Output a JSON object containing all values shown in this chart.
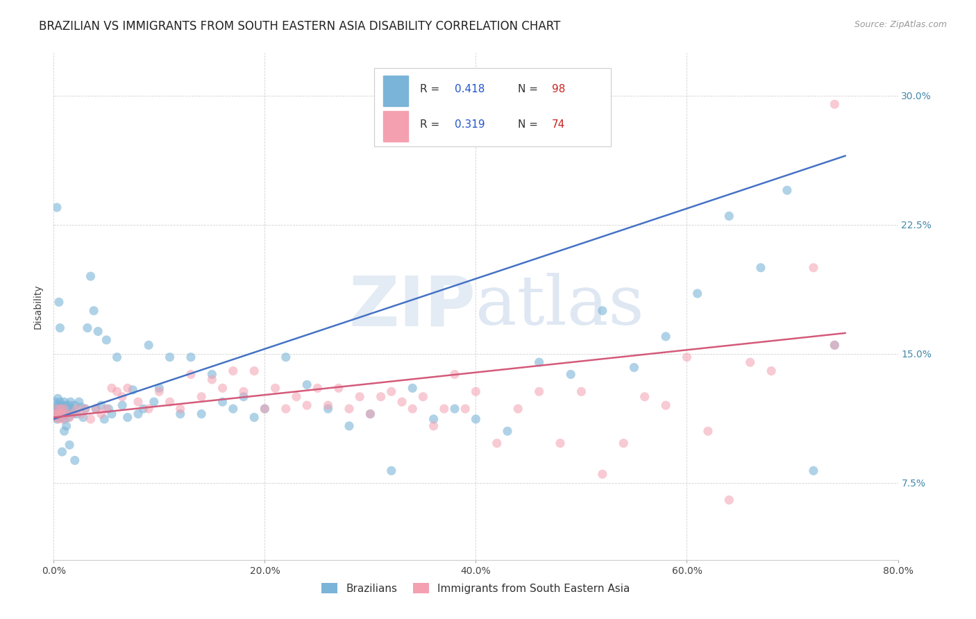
{
  "title": "BRAZILIAN VS IMMIGRANTS FROM SOUTH EASTERN ASIA DISABILITY CORRELATION CHART",
  "source": "Source: ZipAtlas.com",
  "xlabel_ticks": [
    "0.0%",
    "20.0%",
    "40.0%",
    "60.0%",
    "80.0%"
  ],
  "ylabel_ticks": [
    "7.5%",
    "15.0%",
    "22.5%",
    "30.0%"
  ],
  "ylabel_label": "Disability",
  "xlim": [
    0.0,
    0.8
  ],
  "ylim": [
    0.03,
    0.325
  ],
  "xtick_vals": [
    0.0,
    0.2,
    0.4,
    0.6,
    0.8
  ],
  "ytick_vals": [
    0.075,
    0.15,
    0.225,
    0.3
  ],
  "blue_line_x": [
    0.0,
    0.75
  ],
  "blue_line_y": [
    0.112,
    0.265
  ],
  "pink_line_x": [
    0.0,
    0.75
  ],
  "pink_line_y": [
    0.113,
    0.162
  ],
  "scatter_blue_x": [
    0.001,
    0.001,
    0.002,
    0.002,
    0.002,
    0.003,
    0.003,
    0.003,
    0.004,
    0.004,
    0.005,
    0.005,
    0.005,
    0.006,
    0.006,
    0.006,
    0.007,
    0.007,
    0.008,
    0.008,
    0.009,
    0.009,
    0.01,
    0.01,
    0.011,
    0.012,
    0.012,
    0.013,
    0.014,
    0.015,
    0.016,
    0.017,
    0.018,
    0.02,
    0.022,
    0.024,
    0.026,
    0.028,
    0.03,
    0.032,
    0.035,
    0.038,
    0.04,
    0.042,
    0.045,
    0.048,
    0.05,
    0.052,
    0.055,
    0.06,
    0.065,
    0.07,
    0.075,
    0.08,
    0.085,
    0.09,
    0.095,
    0.1,
    0.11,
    0.12,
    0.13,
    0.14,
    0.15,
    0.16,
    0.17,
    0.18,
    0.19,
    0.2,
    0.22,
    0.24,
    0.26,
    0.28,
    0.3,
    0.32,
    0.34,
    0.36,
    0.38,
    0.4,
    0.43,
    0.46,
    0.49,
    0.52,
    0.55,
    0.58,
    0.61,
    0.64,
    0.67,
    0.695,
    0.72,
    0.74,
    0.003,
    0.005,
    0.006,
    0.008,
    0.01,
    0.012,
    0.015,
    0.02
  ],
  "scatter_blue_y": [
    0.122,
    0.117,
    0.115,
    0.118,
    0.113,
    0.12,
    0.115,
    0.112,
    0.118,
    0.124,
    0.116,
    0.12,
    0.113,
    0.118,
    0.122,
    0.115,
    0.119,
    0.113,
    0.116,
    0.12,
    0.115,
    0.118,
    0.112,
    0.122,
    0.118,
    0.115,
    0.12,
    0.118,
    0.113,
    0.12,
    0.122,
    0.118,
    0.115,
    0.12,
    0.115,
    0.122,
    0.119,
    0.113,
    0.118,
    0.165,
    0.195,
    0.175,
    0.118,
    0.163,
    0.12,
    0.112,
    0.158,
    0.118,
    0.115,
    0.148,
    0.12,
    0.113,
    0.129,
    0.115,
    0.118,
    0.155,
    0.122,
    0.13,
    0.148,
    0.115,
    0.148,
    0.115,
    0.138,
    0.122,
    0.118,
    0.125,
    0.113,
    0.118,
    0.148,
    0.132,
    0.118,
    0.108,
    0.115,
    0.082,
    0.13,
    0.112,
    0.118,
    0.112,
    0.105,
    0.145,
    0.138,
    0.175,
    0.142,
    0.16,
    0.185,
    0.23,
    0.2,
    0.245,
    0.082,
    0.155,
    0.235,
    0.18,
    0.165,
    0.093,
    0.105,
    0.108,
    0.097,
    0.088
  ],
  "scatter_pink_x": [
    0.001,
    0.002,
    0.003,
    0.004,
    0.005,
    0.006,
    0.007,
    0.008,
    0.009,
    0.01,
    0.012,
    0.015,
    0.018,
    0.022,
    0.026,
    0.03,
    0.035,
    0.04,
    0.045,
    0.05,
    0.055,
    0.06,
    0.065,
    0.07,
    0.08,
    0.09,
    0.1,
    0.11,
    0.12,
    0.13,
    0.14,
    0.15,
    0.16,
    0.17,
    0.18,
    0.19,
    0.2,
    0.21,
    0.22,
    0.23,
    0.24,
    0.25,
    0.26,
    0.27,
    0.28,
    0.29,
    0.3,
    0.31,
    0.32,
    0.33,
    0.34,
    0.35,
    0.36,
    0.37,
    0.38,
    0.39,
    0.4,
    0.42,
    0.44,
    0.46,
    0.48,
    0.5,
    0.52,
    0.54,
    0.56,
    0.58,
    0.6,
    0.62,
    0.64,
    0.66,
    0.68,
    0.72,
    0.74,
    0.74
  ],
  "scatter_pink_y": [
    0.115,
    0.113,
    0.118,
    0.115,
    0.112,
    0.115,
    0.118,
    0.115,
    0.112,
    0.118,
    0.115,
    0.113,
    0.115,
    0.118,
    0.115,
    0.118,
    0.112,
    0.118,
    0.115,
    0.118,
    0.13,
    0.128,
    0.125,
    0.13,
    0.122,
    0.118,
    0.128,
    0.122,
    0.118,
    0.138,
    0.125,
    0.135,
    0.13,
    0.14,
    0.128,
    0.14,
    0.118,
    0.13,
    0.118,
    0.125,
    0.12,
    0.13,
    0.12,
    0.13,
    0.118,
    0.125,
    0.115,
    0.125,
    0.128,
    0.122,
    0.118,
    0.125,
    0.108,
    0.118,
    0.138,
    0.118,
    0.128,
    0.098,
    0.118,
    0.128,
    0.098,
    0.128,
    0.08,
    0.098,
    0.125,
    0.12,
    0.148,
    0.105,
    0.065,
    0.145,
    0.14,
    0.2,
    0.155,
    0.295
  ],
  "blue_color": "#7ab4d8",
  "pink_color": "#f4a0b0",
  "blue_line_color": "#4472c4",
  "pink_line_color": "#d45a7a",
  "background_color": "#ffffff",
  "grid_color": "#cccccc",
  "watermark_color": "#c8d8ea",
  "watermark_alpha": 0.5,
  "title_fontsize": 12,
  "axis_label_fontsize": 10,
  "tick_fontsize": 10,
  "right_tick_color": "#4488aa",
  "legend_R_color": "#2255cc",
  "legend_N_color": "#cc2222"
}
